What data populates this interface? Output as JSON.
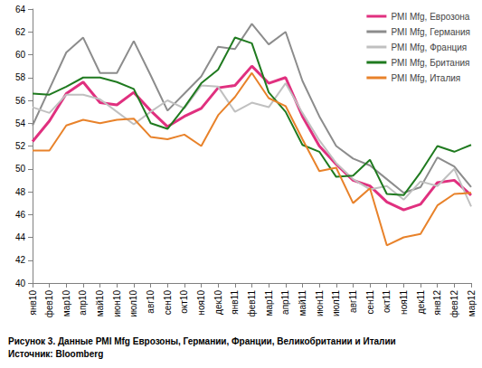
{
  "chart_data": {
    "type": "line",
    "title": "Рисунок 3. Данные PMI Mfg Еврозоны, Германии, Франции, Великобритании и Италии",
    "subtitle": "Источник: Bloomberg",
    "categories": [
      "янв10",
      "фев10",
      "мар10",
      "апр10",
      "май10",
      "июн10",
      "июл10",
      "авг10",
      "сен10",
      "окт10",
      "ноя10",
      "дек10",
      "янв11",
      "фев11",
      "мар11",
      "апр11",
      "май11",
      "июн11",
      "июл11",
      "авг11",
      "сен11",
      "окт11",
      "ноя11",
      "дек11",
      "янв12",
      "фев12",
      "мар12"
    ],
    "series": [
      {
        "name": "PMI Mfg, Еврозона",
        "color": "#e0307f",
        "values": [
          52.4,
          54.2,
          56.6,
          57.6,
          55.8,
          55.6,
          56.7,
          55.1,
          53.7,
          54.6,
          55.3,
          57.1,
          57.3,
          59.0,
          57.5,
          58.0,
          54.6,
          52.0,
          50.4,
          49.0,
          48.5,
          47.1,
          46.4,
          46.9,
          48.8,
          49.0,
          47.7
        ]
      },
      {
        "name": "PMI Mfg, Германия",
        "color": "#8c8c8c",
        "values": [
          53.8,
          57.0,
          60.2,
          61.5,
          58.4,
          58.4,
          61.2,
          58.2,
          55.1,
          56.6,
          58.1,
          60.7,
          60.5,
          62.7,
          60.9,
          62.0,
          57.7,
          54.6,
          52.0,
          50.9,
          50.3,
          49.1,
          47.9,
          48.4,
          51.0,
          50.2,
          48.4
        ]
      },
      {
        "name": "PMI Mfg, Франция",
        "color": "#c0c0c0",
        "values": [
          55.4,
          54.9,
          56.5,
          56.5,
          56.1,
          55.0,
          53.9,
          55.0,
          56.0,
          55.3,
          57.3,
          57.2,
          55.0,
          55.8,
          55.4,
          57.5,
          54.9,
          52.5,
          50.5,
          49.1,
          48.2,
          48.5,
          47.3,
          48.9,
          48.5,
          50.0,
          46.7
        ]
      },
      {
        "name": "PMI Mfg, Британия",
        "color": "#1f7a1f",
        "values": [
          56.6,
          56.5,
          57.2,
          58.0,
          58.0,
          57.6,
          57.0,
          54.0,
          53.5,
          55.4,
          57.5,
          58.7,
          61.5,
          61.0,
          56.7,
          55.0,
          52.1,
          51.5,
          49.3,
          49.4,
          50.8,
          47.8,
          47.7,
          49.7,
          52.0,
          51.5,
          52.1
        ]
      },
      {
        "name": "PMI Mfg, Италия",
        "color": "#e8822a",
        "values": [
          51.6,
          51.6,
          53.8,
          54.3,
          54.0,
          54.3,
          54.4,
          52.8,
          52.6,
          53.0,
          52.0,
          54.7,
          56.3,
          58.4,
          56.2,
          55.5,
          52.6,
          49.8,
          50.1,
          47.0,
          48.3,
          43.3,
          44.0,
          44.3,
          46.8,
          47.8,
          47.9
        ]
      }
    ],
    "ylim": [
      40,
      64
    ],
    "yticks": [
      40,
      42,
      44,
      46,
      48,
      50,
      52,
      54,
      56,
      58,
      60,
      62,
      64
    ],
    "grid": false,
    "legend": "top-right"
  }
}
